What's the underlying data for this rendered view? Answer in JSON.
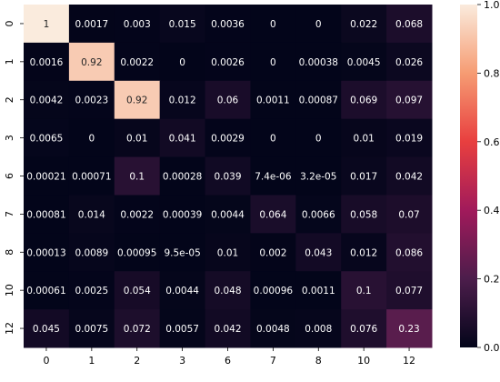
{
  "chart_data": {
    "type": "heatmap",
    "title": "",
    "xlabel": "",
    "ylabel": "",
    "x_labels": [
      "0",
      "1",
      "2",
      "3",
      "6",
      "7",
      "8",
      "10",
      "12"
    ],
    "y_labels": [
      "0",
      "1",
      "2",
      "3",
      "6",
      "7",
      "8",
      "10",
      "12"
    ],
    "cells": [
      [
        {
          "v": 1,
          "t": "1"
        },
        {
          "v": 0.0017,
          "t": "0.0017"
        },
        {
          "v": 0.003,
          "t": "0.003"
        },
        {
          "v": 0.015,
          "t": "0.015"
        },
        {
          "v": 0.0036,
          "t": "0.0036"
        },
        {
          "v": 0,
          "t": "0"
        },
        {
          "v": 0,
          "t": "0"
        },
        {
          "v": 0.022,
          "t": "0.022"
        },
        {
          "v": 0.068,
          "t": "0.068"
        }
      ],
      [
        {
          "v": 0.0016,
          "t": "0.0016"
        },
        {
          "v": 0.92,
          "t": "0.92"
        },
        {
          "v": 0.0022,
          "t": "0.0022"
        },
        {
          "v": 0,
          "t": "0"
        },
        {
          "v": 0.0026,
          "t": "0.0026"
        },
        {
          "v": 0,
          "t": "0"
        },
        {
          "v": 0.00038,
          "t": "0.00038"
        },
        {
          "v": 0.0045,
          "t": "0.0045"
        },
        {
          "v": 0.026,
          "t": "0.026"
        }
      ],
      [
        {
          "v": 0.0042,
          "t": "0.0042"
        },
        {
          "v": 0.0023,
          "t": "0.0023"
        },
        {
          "v": 0.92,
          "t": "0.92"
        },
        {
          "v": 0.012,
          "t": "0.012"
        },
        {
          "v": 0.06,
          "t": "0.06"
        },
        {
          "v": 0.0011,
          "t": "0.0011"
        },
        {
          "v": 0.00087,
          "t": "0.00087"
        },
        {
          "v": 0.069,
          "t": "0.069"
        },
        {
          "v": 0.097,
          "t": "0.097"
        }
      ],
      [
        {
          "v": 0.0065,
          "t": "0.0065"
        },
        {
          "v": 0,
          "t": "0"
        },
        {
          "v": 0.01,
          "t": "0.01"
        },
        {
          "v": 0.041,
          "t": "0.041"
        },
        {
          "v": 0.0029,
          "t": "0.0029"
        },
        {
          "v": 0,
          "t": "0"
        },
        {
          "v": 0,
          "t": "0"
        },
        {
          "v": 0.01,
          "t": "0.01"
        },
        {
          "v": 0.019,
          "t": "0.019"
        }
      ],
      [
        {
          "v": 0.00021,
          "t": "0.00021"
        },
        {
          "v": 0.00071,
          "t": "0.00071"
        },
        {
          "v": 0.1,
          "t": "0.1"
        },
        {
          "v": 0.00028,
          "t": "0.00028"
        },
        {
          "v": 0.039,
          "t": "0.039"
        },
        {
          "v": 7.4e-06,
          "t": "7.4e-06"
        },
        {
          "v": 3.2e-05,
          "t": "3.2e-05"
        },
        {
          "v": 0.017,
          "t": "0.017"
        },
        {
          "v": 0.042,
          "t": "0.042"
        }
      ],
      [
        {
          "v": 0.00081,
          "t": "0.00081"
        },
        {
          "v": 0.014,
          "t": "0.014"
        },
        {
          "v": 0.0022,
          "t": "0.0022"
        },
        {
          "v": 0.00039,
          "t": "0.00039"
        },
        {
          "v": 0.0044,
          "t": "0.0044"
        },
        {
          "v": 0.064,
          "t": "0.064"
        },
        {
          "v": 0.0066,
          "t": "0.0066"
        },
        {
          "v": 0.058,
          "t": "0.058"
        },
        {
          "v": 0.07,
          "t": "0.07"
        }
      ],
      [
        {
          "v": 0.00013,
          "t": "0.00013"
        },
        {
          "v": 0.0089,
          "t": "0.0089"
        },
        {
          "v": 0.00095,
          "t": "0.00095"
        },
        {
          "v": 9.5e-05,
          "t": "9.5e-05"
        },
        {
          "v": 0.01,
          "t": "0.01"
        },
        {
          "v": 0.002,
          "t": "0.002"
        },
        {
          "v": 0.043,
          "t": "0.043"
        },
        {
          "v": 0.012,
          "t": "0.012"
        },
        {
          "v": 0.086,
          "t": "0.086"
        }
      ],
      [
        {
          "v": 0.00061,
          "t": "0.00061"
        },
        {
          "v": 0.0025,
          "t": "0.0025"
        },
        {
          "v": 0.054,
          "t": "0.054"
        },
        {
          "v": 0.0044,
          "t": "0.0044"
        },
        {
          "v": 0.048,
          "t": "0.048"
        },
        {
          "v": 0.00096,
          "t": "0.00096"
        },
        {
          "v": 0.0011,
          "t": "0.0011"
        },
        {
          "v": 0.1,
          "t": "0.1"
        },
        {
          "v": 0.077,
          "t": "0.077"
        }
      ],
      [
        {
          "v": 0.045,
          "t": "0.045"
        },
        {
          "v": 0.0075,
          "t": "0.0075"
        },
        {
          "v": 0.072,
          "t": "0.072"
        },
        {
          "v": 0.0057,
          "t": "0.0057"
        },
        {
          "v": 0.042,
          "t": "0.042"
        },
        {
          "v": 0.0048,
          "t": "0.0048"
        },
        {
          "v": 0.008,
          "t": "0.008"
        },
        {
          "v": 0.076,
          "t": "0.076"
        },
        {
          "v": 0.23,
          "t": "0.23"
        }
      ]
    ],
    "vmin": 0.0,
    "vmax": 1.0,
    "colorbar_ticks": [
      {
        "v": 0.0,
        "t": "0.0"
      },
      {
        "v": 0.2,
        "t": "0.2"
      },
      {
        "v": 0.4,
        "t": "0.4"
      },
      {
        "v": 0.6,
        "t": "0.6"
      },
      {
        "v": 0.8,
        "t": "0.8"
      },
      {
        "v": 1.0,
        "t": "1.0"
      }
    ],
    "colormap": "rocket",
    "colormap_stops": [
      "#03051a",
      "#4c1d4b",
      "#a11a5b",
      "#e83f3f",
      "#f69c73",
      "#faebdd"
    ],
    "grid": false,
    "legend": "colorbar-right"
  }
}
